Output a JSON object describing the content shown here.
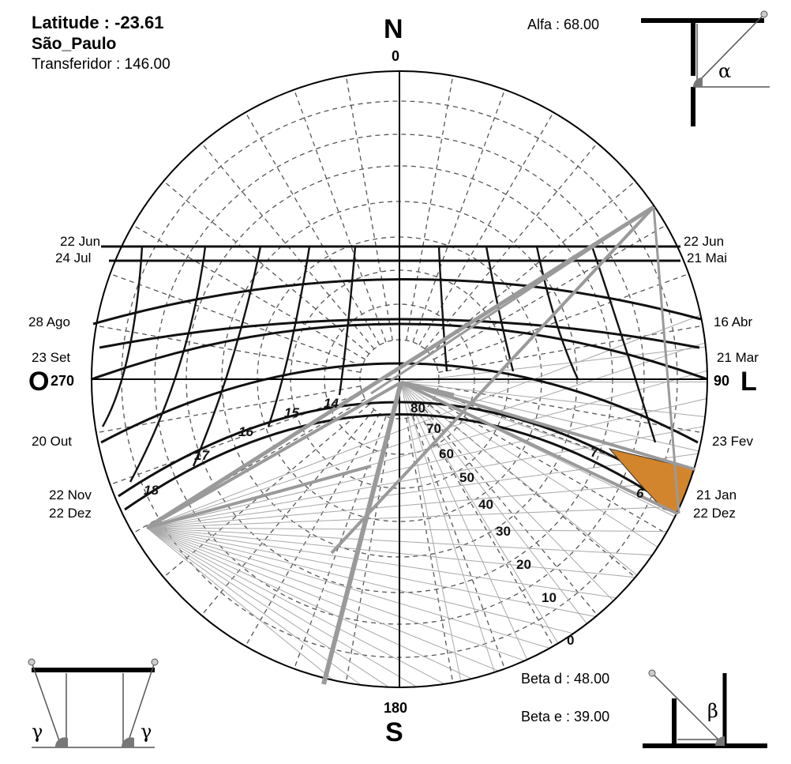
{
  "info": {
    "latitude": "Latitude :  -23.61",
    "city": "São_Paulo",
    "transferidor": "Transferidor : 146.00",
    "alfa": "Alfa : 68.00",
    "beta_d": "Beta d : 48.00",
    "beta_e": "Beta e : 39.00"
  },
  "cardinals": {
    "n": "N",
    "s": "S",
    "o": "O",
    "l": "L"
  },
  "degrees": {
    "north": "0",
    "south": "180",
    "west": "270",
    "east": "90"
  },
  "date_labels_left": [
    "22 Jun",
    "24 Jul",
    "28 Ago",
    "23 Set",
    "20 Out",
    "22 Nov",
    "22 Dez"
  ],
  "date_labels_right": [
    "22 Jun",
    "21 Mai",
    "16 Abr",
    "21 Mar",
    "23 Fev",
    "21 Jan",
    "22 Dez"
  ],
  "hour_labels": [
    "14",
    "15",
    "16",
    "17",
    "18",
    "7",
    "6"
  ],
  "altitude_labels": [
    "80",
    "70",
    "60",
    "50",
    "40",
    "30",
    "20",
    "10",
    "0"
  ],
  "angle_symbols": {
    "alfa": "α",
    "beta": "β",
    "gamma_left": "γ",
    "gamma_right": "γ"
  },
  "colors": {
    "shade": "#d2852c",
    "mask_lines": "#9a9a9a",
    "grid": "#555555",
    "paths": "#111111"
  }
}
